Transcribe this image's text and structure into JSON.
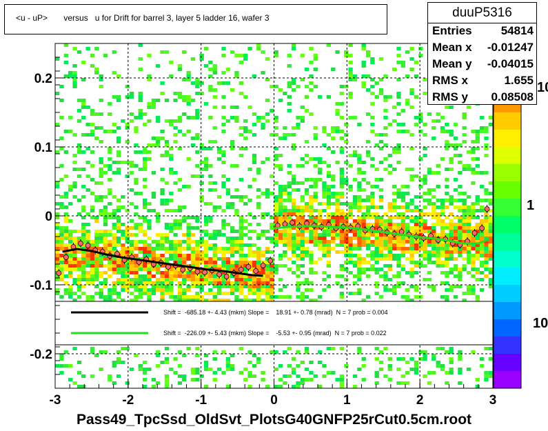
{
  "title": "<u - uP>       versus   u for Drift for barrel 3, layer 5 ladder 16, wafer 3",
  "stats": {
    "name": "duuP5316",
    "rows": [
      {
        "key": "Entries",
        "value": "54814"
      },
      {
        "key": "Mean x",
        "value": "-0.01247"
      },
      {
        "key": "Mean y",
        "value": "-0.04015"
      },
      {
        "key": "RMS x",
        "value": "1.655"
      },
      {
        "key": "RMS y",
        "value": "0.08508"
      }
    ]
  },
  "footer": "Pass49_TpcSsd_OldSvt_PlotsG40GNFP25rCut0.5cm.root",
  "legend": {
    "black_text": "Shift =  -685.18 +- 4.43 (mkm) Slope =    18.91 +- 0.78 (mrad)  N = 7 prob = 0.004",
    "green_text": "Shift =  -226.09 +- 5.43 (mkm) Slope =    -5.53 +- 0.95 (mrad)  N = 7 prob = 0.022"
  },
  "colors": {
    "black_fit": "#000000",
    "green_fit": "#22dd22",
    "points": "#ff6666"
  },
  "chart_data": {
    "type": "heatmap",
    "xlim": [
      -3,
      3
    ],
    "ylim": [
      -0.25,
      0.25
    ],
    "x_ticks": [
      "-3",
      "-2",
      "-1",
      "0",
      "1",
      "2",
      "3"
    ],
    "y_ticks": [
      "-0.2",
      "-0.1",
      "0",
      "0.1",
      "0.2"
    ],
    "z_scale": "log",
    "z_ticks": [
      "10",
      "1",
      "10"
    ],
    "grid": true,
    "black_fit_profile": {
      "x": [
        -2.9,
        -2.7,
        -2.5,
        -2.3,
        -2.1,
        -1.9,
        -1.7,
        -1.5,
        -1.3,
        -1.1,
        -0.9,
        -0.7,
        -0.5,
        -0.3,
        -0.15
      ],
      "y": [
        -0.052,
        -0.048,
        -0.051,
        -0.056,
        -0.06,
        -0.063,
        -0.066,
        -0.069,
        -0.072,
        -0.075,
        -0.078,
        -0.08,
        -0.083,
        -0.086,
        -0.087
      ]
    },
    "green_fit_profile": {
      "x": [
        0.0,
        0.2,
        0.4,
        0.6,
        0.8,
        1.0,
        1.2,
        1.4,
        1.6,
        1.8,
        2.0,
        2.2,
        2.4,
        2.6,
        2.8,
        2.95
      ],
      "y": [
        -0.018,
        -0.016,
        -0.015,
        -0.015,
        -0.016,
        -0.017,
        -0.019,
        -0.022,
        -0.025,
        -0.028,
        -0.031,
        -0.033,
        -0.036,
        -0.04,
        -0.04,
        -0.034
      ]
    },
    "profile_points": {
      "x": [
        -2.95,
        -2.85,
        -2.75,
        -2.65,
        -2.55,
        -2.45,
        -2.35,
        -2.25,
        -2.15,
        -2.05,
        -1.95,
        -1.85,
        -1.75,
        -1.65,
        -1.55,
        -1.45,
        -1.35,
        -1.25,
        -1.15,
        -1.05,
        -0.95,
        -0.85,
        -0.75,
        -0.65,
        -0.55,
        -0.45,
        -0.35,
        -0.25,
        -0.15,
        -0.05,
        0.05,
        0.15,
        0.25,
        0.35,
        0.45,
        0.55,
        0.65,
        0.75,
        0.85,
        0.95,
        1.05,
        1.15,
        1.25,
        1.35,
        1.45,
        1.55,
        1.65,
        1.75,
        1.85,
        1.95,
        2.05,
        2.15,
        2.25,
        2.35,
        2.45,
        2.55,
        2.65,
        2.75,
        2.85,
        2.92
      ],
      "y": [
        -0.083,
        -0.06,
        -0.045,
        -0.04,
        -0.043,
        -0.05,
        -0.052,
        -0.058,
        -0.055,
        -0.064,
        -0.06,
        -0.067,
        -0.063,
        -0.07,
        -0.068,
        -0.074,
        -0.072,
        -0.078,
        -0.076,
        -0.081,
        -0.082,
        -0.079,
        -0.085,
        -0.088,
        -0.083,
        -0.078,
        -0.074,
        -0.08,
        -0.072,
        -0.065,
        -0.014,
        -0.012,
        -0.01,
        -0.015,
        -0.011,
        -0.014,
        -0.016,
        -0.013,
        -0.018,
        -0.016,
        -0.017,
        -0.015,
        -0.021,
        -0.019,
        -0.02,
        -0.024,
        -0.026,
        -0.023,
        -0.027,
        -0.03,
        -0.032,
        -0.029,
        -0.035,
        -0.034,
        -0.04,
        -0.042,
        -0.037,
        -0.025,
        -0.018,
        0.01
      ]
    }
  }
}
